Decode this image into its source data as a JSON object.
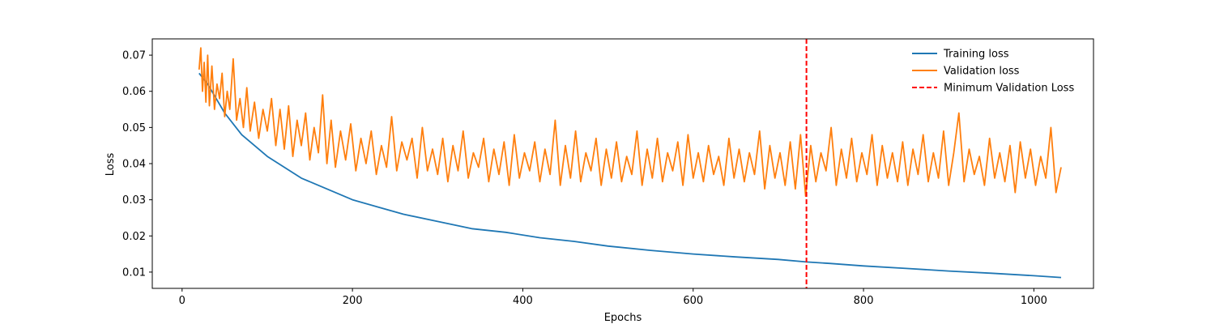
{
  "chart_data": {
    "type": "line",
    "title": "",
    "xlabel": "Epochs",
    "ylabel": "Loss",
    "xlim": [
      -35,
      1070
    ],
    "ylim": [
      0.0055,
      0.0745
    ],
    "xticks": [
      0,
      200,
      400,
      600,
      800,
      1000
    ],
    "yticks": [
      0.01,
      0.02,
      0.03,
      0.04,
      0.05,
      0.06,
      0.07
    ],
    "xtick_labels": [
      "0",
      "200",
      "400",
      "600",
      "800",
      "1000"
    ],
    "ytick_labels": [
      "0.01",
      "0.02",
      "0.03",
      "0.04",
      "0.05",
      "0.06",
      "0.07"
    ],
    "grid": false,
    "legend_position": "top-right",
    "series": [
      {
        "name": "Training loss",
        "color": "#1f77b4",
        "style": "solid",
        "x": [
          20,
          30,
          40,
          50,
          60,
          70,
          80,
          90,
          100,
          120,
          140,
          160,
          180,
          200,
          230,
          260,
          300,
          340,
          380,
          420,
          460,
          500,
          550,
          600,
          650,
          700,
          733,
          760,
          800,
          850,
          900,
          950,
          1000,
          1032
        ],
        "y": [
          0.065,
          0.062,
          0.058,
          0.054,
          0.051,
          0.048,
          0.046,
          0.044,
          0.042,
          0.039,
          0.036,
          0.034,
          0.032,
          0.03,
          0.028,
          0.026,
          0.024,
          0.022,
          0.021,
          0.0195,
          0.0185,
          0.0172,
          0.016,
          0.015,
          0.0142,
          0.0135,
          0.0128,
          0.0124,
          0.0117,
          0.011,
          0.0103,
          0.0097,
          0.009,
          0.0085
        ]
      },
      {
        "name": "Validation loss",
        "color": "#ff7f0e",
        "style": "solid",
        "x": [
          20,
          22,
          24,
          26,
          28,
          30,
          32,
          35,
          38,
          41,
          44,
          47,
          50,
          53,
          56,
          60,
          64,
          68,
          72,
          76,
          80,
          85,
          90,
          95,
          100,
          105,
          110,
          115,
          120,
          125,
          130,
          135,
          140,
          145,
          150,
          155,
          160,
          165,
          170,
          175,
          180,
          186,
          192,
          198,
          204,
          210,
          216,
          222,
          228,
          234,
          240,
          246,
          252,
          258,
          264,
          270,
          276,
          282,
          288,
          294,
          300,
          306,
          312,
          318,
          324,
          330,
          336,
          342,
          348,
          354,
          360,
          366,
          372,
          378,
          384,
          390,
          396,
          402,
          408,
          414,
          420,
          426,
          432,
          438,
          444,
          450,
          456,
          462,
          468,
          474,
          480,
          486,
          492,
          498,
          504,
          510,
          516,
          522,
          528,
          534,
          540,
          546,
          552,
          558,
          564,
          570,
          576,
          582,
          588,
          594,
          600,
          606,
          612,
          618,
          624,
          630,
          636,
          642,
          648,
          654,
          660,
          666,
          672,
          678,
          684,
          690,
          696,
          702,
          708,
          714,
          720,
          726,
          732,
          738,
          744,
          750,
          756,
          762,
          768,
          774,
          780,
          786,
          792,
          798,
          804,
          810,
          816,
          822,
          828,
          834,
          840,
          846,
          852,
          858,
          864,
          870,
          876,
          882,
          888,
          894,
          900,
          906,
          912,
          918,
          924,
          930,
          936,
          942,
          948,
          954,
          960,
          966,
          972,
          978,
          984,
          990,
          996,
          1002,
          1008,
          1014,
          1020,
          1026,
          1032
        ],
        "y": [
          0.066,
          0.072,
          0.06,
          0.068,
          0.057,
          0.07,
          0.056,
          0.067,
          0.055,
          0.062,
          0.058,
          0.065,
          0.053,
          0.06,
          0.055,
          0.069,
          0.052,
          0.058,
          0.05,
          0.061,
          0.049,
          0.057,
          0.047,
          0.055,
          0.049,
          0.058,
          0.045,
          0.055,
          0.044,
          0.056,
          0.042,
          0.052,
          0.045,
          0.054,
          0.041,
          0.05,
          0.043,
          0.059,
          0.04,
          0.052,
          0.039,
          0.049,
          0.041,
          0.051,
          0.038,
          0.047,
          0.04,
          0.049,
          0.037,
          0.045,
          0.039,
          0.053,
          0.038,
          0.046,
          0.041,
          0.047,
          0.036,
          0.05,
          0.038,
          0.044,
          0.037,
          0.047,
          0.035,
          0.045,
          0.038,
          0.049,
          0.036,
          0.043,
          0.039,
          0.047,
          0.035,
          0.044,
          0.037,
          0.046,
          0.034,
          0.048,
          0.036,
          0.043,
          0.038,
          0.046,
          0.035,
          0.044,
          0.037,
          0.052,
          0.034,
          0.045,
          0.036,
          0.049,
          0.035,
          0.043,
          0.038,
          0.047,
          0.034,
          0.044,
          0.036,
          0.046,
          0.035,
          0.042,
          0.037,
          0.049,
          0.034,
          0.044,
          0.036,
          0.047,
          0.035,
          0.043,
          0.038,
          0.046,
          0.034,
          0.048,
          0.036,
          0.043,
          0.035,
          0.045,
          0.037,
          0.042,
          0.034,
          0.047,
          0.036,
          0.044,
          0.035,
          0.043,
          0.037,
          0.049,
          0.033,
          0.045,
          0.036,
          0.043,
          0.034,
          0.046,
          0.033,
          0.048,
          0.031,
          0.045,
          0.035,
          0.043,
          0.038,
          0.05,
          0.034,
          0.044,
          0.036,
          0.047,
          0.035,
          0.043,
          0.037,
          0.048,
          0.034,
          0.045,
          0.036,
          0.043,
          0.035,
          0.046,
          0.034,
          0.044,
          0.037,
          0.048,
          0.035,
          0.043,
          0.036,
          0.049,
          0.034,
          0.043,
          0.054,
          0.035,
          0.044,
          0.037,
          0.042,
          0.034,
          0.047,
          0.036,
          0.043,
          0.035,
          0.045,
          0.032,
          0.046,
          0.036,
          0.044,
          0.034,
          0.042,
          0.036,
          0.05,
          0.032,
          0.039
        ]
      },
      {
        "name": "Minimum Validation Loss",
        "color": "#ff0000",
        "style": "dashed",
        "x_vline": 733
      }
    ]
  }
}
